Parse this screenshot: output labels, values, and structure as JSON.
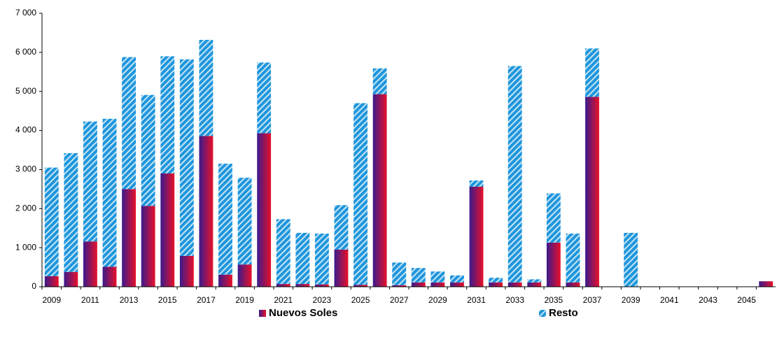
{
  "chart_data": {
    "type": "stacked_bar",
    "categories": [
      "2009",
      null,
      "2011",
      null,
      "2013",
      null,
      "2015",
      null,
      "2017",
      null,
      "2019",
      null,
      "2021",
      null,
      "2023",
      null,
      "2025",
      null,
      "2027",
      null,
      "2029",
      null,
      "2031",
      null,
      "2033",
      null,
      "2035",
      null,
      "2037",
      null,
      "2039",
      null,
      "2041",
      null,
      "2043",
      null,
      "2045",
      null
    ],
    "series": [
      {
        "name": "Nuevos Soles",
        "color": "#e8102a",
        "values": [
          270,
          380,
          1160,
          510,
          2500,
          2070,
          2900,
          790,
          3860,
          310,
          570,
          3930,
          70,
          70,
          60,
          950,
          50,
          4930,
          40,
          110,
          110,
          110,
          2560,
          110,
          110,
          110,
          1130,
          110,
          4860,
          0,
          0,
          0,
          0,
          0,
          0,
          0,
          0,
          140
        ]
      },
      {
        "name": "Resto",
        "color": "#1e96dc",
        "values": [
          2780,
          3040,
          3070,
          3790,
          3380,
          2840,
          3000,
          5030,
          2460,
          2840,
          2220,
          1810,
          1660,
          1310,
          1300,
          1140,
          4650,
          660,
          580,
          370,
          280,
          180,
          160,
          120,
          5540,
          80,
          1260,
          1250,
          1240,
          10,
          1380,
          10,
          0,
          0,
          0,
          0,
          0,
          0
        ]
      }
    ],
    "ylim": [
      0,
      7000
    ],
    "yticks": [
      0,
      {
        "value": 1000,
        "label": "1 000"
      },
      {
        "value": 2000,
        "label": "2 000"
      },
      {
        "value": 3000,
        "label": "3 000"
      },
      {
        "value": 4000,
        "label": "4 000"
      },
      {
        "value": 5000,
        "label": "5 000"
      },
      {
        "value": 6000,
        "label": "6 000"
      },
      {
        "value": 7000,
        "label": "7 000"
      }
    ],
    "grid": false,
    "legend": "bottom"
  }
}
